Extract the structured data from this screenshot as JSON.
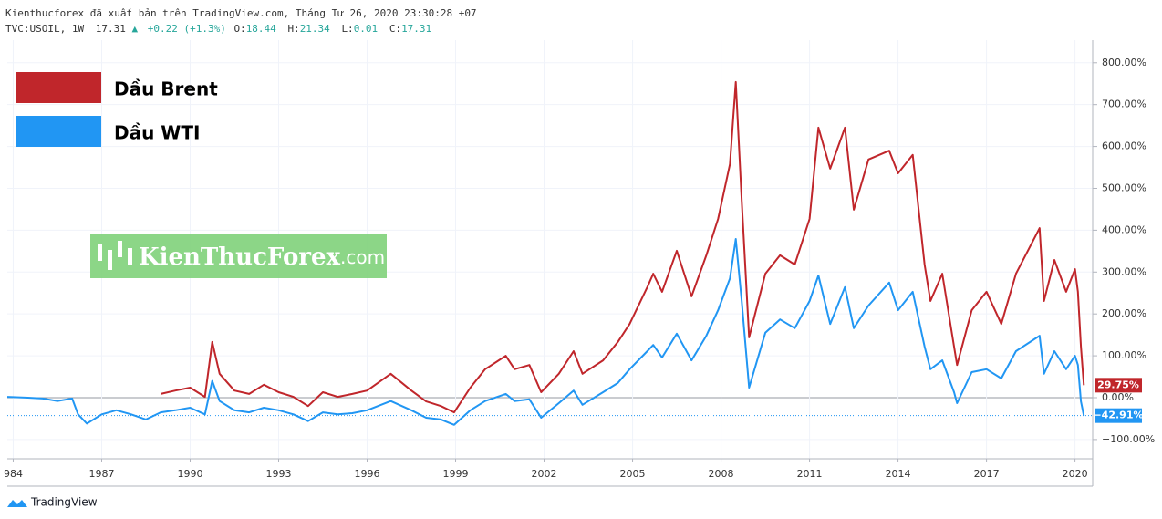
{
  "header": {
    "published": "Kienthucforex đã xuất bản trên TradingView.com, Tháng Tư 26, 2020 23:30:28 +07",
    "symbol": "TVC:USOIL, 1W",
    "price": "17.31",
    "arrow": "▲",
    "change": "+0.22 (+1.3%)",
    "ohlc": [
      {
        "key": "O:",
        "val": "18.44"
      },
      {
        "key": "H:",
        "val": "21.34"
      },
      {
        "key": "L:",
        "val": "0.01"
      },
      {
        "key": "C:",
        "val": "17.31"
      }
    ]
  },
  "watermark": {
    "brand": "KienThucForex",
    "suffix": ".com"
  },
  "footer": {
    "logo": "TradingView"
  },
  "chart_data": {
    "type": "line",
    "grid": true,
    "xlim": [
      1983.8,
      2020.6
    ],
    "ylim": [
      -146,
      854
    ],
    "xticks": [
      {
        "value": 1984,
        "label": "984"
      },
      1987,
      1990,
      1993,
      1996,
      1999,
      2002,
      2005,
      2008,
      2011,
      2014,
      2017,
      2020
    ],
    "yticks": [
      {
        "value": -100,
        "label": "−100.00%"
      },
      {
        "value": 0,
        "label": "0.00%"
      },
      {
        "value": 100,
        "label": "100.00%"
      },
      {
        "value": 200,
        "label": "200.00%"
      },
      {
        "value": 300,
        "label": "300.00%"
      },
      {
        "value": 400,
        "label": "400.00%"
      },
      {
        "value": 500,
        "label": "500.00%"
      },
      {
        "value": 600,
        "label": "600.00%"
      },
      {
        "value": 700,
        "label": "700.00%"
      },
      {
        "value": 800,
        "label": "800.00%"
      }
    ],
    "series": [
      {
        "name": "Dầu Brent",
        "color": "#c0262b",
        "last_label": "29.75%",
        "x": [
          1989.0,
          1989.5,
          1990.0,
          1990.5,
          1990.75,
          1991.0,
          1991.5,
          1992.0,
          1992.5,
          1993.0,
          1993.5,
          1994.0,
          1994.5,
          1995.0,
          1995.5,
          1996.0,
          1996.8,
          1997.5,
          1998.0,
          1998.5,
          1998.95,
          1999.5,
          2000.0,
          2000.7,
          2001.0,
          2001.5,
          2001.9,
          2002.5,
          2003.0,
          2003.3,
          2004.0,
          2004.5,
          2004.9,
          2005.5,
          2005.7,
          2006.0,
          2006.5,
          2007.0,
          2007.5,
          2007.9,
          2008.3,
          2008.5,
          2008.7,
          2008.95,
          2009.5,
          2010.0,
          2010.5,
          2011.0,
          2011.3,
          2011.7,
          2012.2,
          2012.5,
          2013.0,
          2013.7,
          2014.0,
          2014.5,
          2014.9,
          2015.1,
          2015.5,
          2015.9,
          2016.0,
          2016.5,
          2017.0,
          2017.5,
          2018.0,
          2018.8,
          2018.95,
          2019.3,
          2019.7,
          2020.0,
          2020.1,
          2020.2,
          2020.3
        ],
        "values": [
          9,
          17,
          24,
          2,
          133,
          57,
          17,
          9,
          31,
          13,
          2,
          -20,
          13,
          2,
          9,
          17,
          57,
          17,
          -9,
          -20,
          -35,
          24,
          68,
          100,
          68,
          78,
          13,
          57,
          111,
          57,
          89,
          133,
          176,
          264,
          296,
          253,
          351,
          242,
          340,
          427,
          558,
          754,
          471,
          144,
          296,
          340,
          318,
          427,
          645,
          547,
          645,
          449,
          569,
          590,
          536,
          580,
          318,
          231,
          296,
          122,
          78,
          209,
          253,
          176,
          296,
          405,
          231,
          329,
          253,
          307,
          253,
          122,
          29.75
        ]
      },
      {
        "name": "Dầu WTI",
        "color": "#2196f3",
        "last_label": "−42.91%",
        "x": [
          1983.8,
          1984.5,
          1985.0,
          1985.5,
          1986.0,
          1986.2,
          1986.5,
          1987.0,
          1987.5,
          1988.0,
          1988.5,
          1989.0,
          1989.5,
          1990.0,
          1990.5,
          1990.75,
          1991.0,
          1991.5,
          1992.0,
          1992.5,
          1993.0,
          1993.5,
          1994.0,
          1994.5,
          1995.0,
          1995.5,
          1996.0,
          1996.8,
          1997.5,
          1998.0,
          1998.5,
          1998.95,
          1999.5,
          2000.0,
          2000.7,
          2001.0,
          2001.5,
          2001.9,
          2002.5,
          2003.0,
          2003.3,
          2004.0,
          2004.5,
          2004.9,
          2005.5,
          2005.7,
          2006.0,
          2006.5,
          2007.0,
          2007.5,
          2007.9,
          2008.3,
          2008.5,
          2008.7,
          2008.95,
          2009.5,
          2010.0,
          2010.5,
          2011.0,
          2011.3,
          2011.7,
          2012.2,
          2012.5,
          2013.0,
          2013.7,
          2014.0,
          2014.5,
          2014.9,
          2015.1,
          2015.5,
          2015.9,
          2016.0,
          2016.5,
          2017.0,
          2017.5,
          2018.0,
          2018.8,
          2018.95,
          2019.3,
          2019.7,
          2020.0,
          2020.1,
          2020.2,
          2020.3
        ],
        "values": [
          2,
          0,
          -2,
          -8,
          -2,
          -40,
          -62,
          -40,
          -30,
          -40,
          -52,
          -35,
          -30,
          -24,
          -40,
          40,
          -8,
          -30,
          -35,
          -24,
          -30,
          -40,
          -56,
          -35,
          -40,
          -37,
          -30,
          -8,
          -30,
          -48,
          -52,
          -65,
          -30,
          -8,
          9,
          -8,
          -4,
          -48,
          -13,
          17,
          -17,
          13,
          35,
          68,
          111,
          126,
          96,
          153,
          89,
          148,
          209,
          285,
          379,
          231,
          24,
          155,
          187,
          166,
          231,
          292,
          176,
          264,
          166,
          220,
          275,
          209,
          253,
          122,
          68,
          89,
          13,
          -13,
          61,
          68,
          46,
          111,
          148,
          57,
          111,
          68,
          100,
          78,
          -9,
          -42.91
        ]
      }
    ]
  }
}
